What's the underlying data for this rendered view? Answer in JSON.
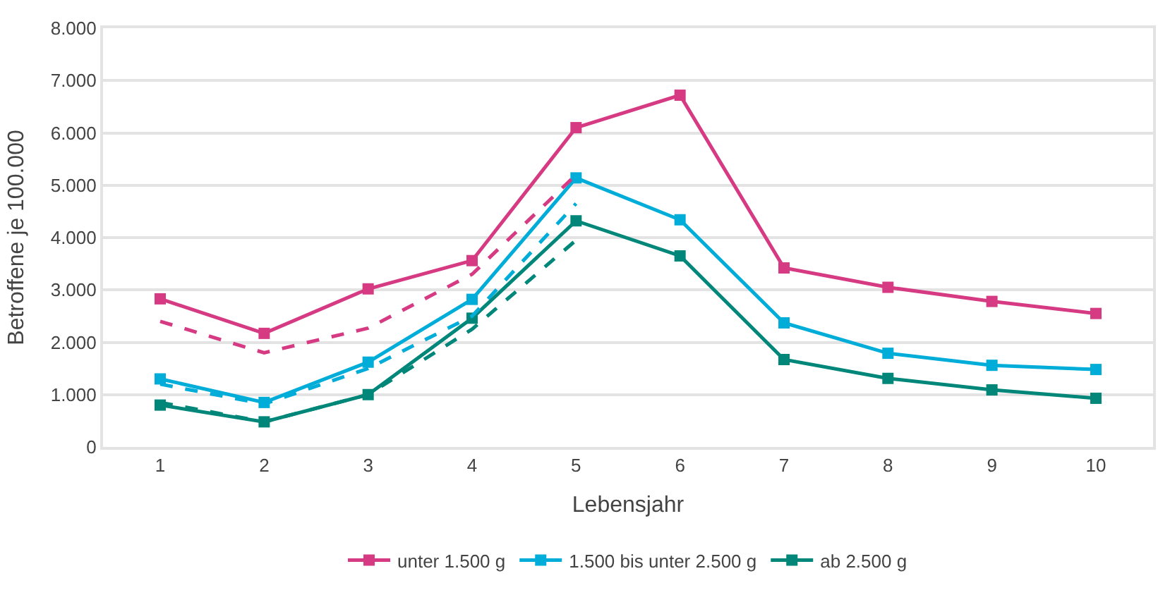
{
  "chart_data": {
    "type": "line",
    "xlabel": "Lebensjahr",
    "ylabel": "Betroffene je 100.000",
    "x": [
      1,
      2,
      3,
      4,
      5,
      6,
      7,
      8,
      9,
      10
    ],
    "xlim": [
      0.45,
      10.55
    ],
    "xticks": [
      1,
      2,
      3,
      4,
      5,
      6,
      7,
      8,
      9,
      10
    ],
    "ylim": [
      0,
      8000
    ],
    "yticks": [
      {
        "value": 0,
        "label": "0"
      },
      {
        "value": 1000,
        "label": "1.000"
      },
      {
        "value": 2000,
        "label": "2.000"
      },
      {
        "value": 3000,
        "label": "3.000"
      },
      {
        "value": 4000,
        "label": "4.000"
      },
      {
        "value": 5000,
        "label": "5.000"
      },
      {
        "value": 6000,
        "label": "6.000"
      },
      {
        "value": 7000,
        "label": "7.000"
      },
      {
        "value": 8000,
        "label": "8.000"
      }
    ],
    "grid": "y",
    "legend": "bottom",
    "marker": "square",
    "line_style": "solid",
    "series": [
      {
        "name": "unter 1.500 g",
        "color": "#d63a83",
        "values": [
          2830,
          2170,
          3020,
          3560,
          6100,
          6720,
          3420,
          3050,
          2780,
          2550
        ]
      },
      {
        "name": "1.500 bis unter 2.500 g",
        "color": "#00acd8",
        "values": [
          1300,
          850,
          1620,
          2820,
          5140,
          4340,
          2370,
          1790,
          1560,
          1480
        ]
      },
      {
        "name": "ab 2.500 g",
        "color": "#00877a",
        "values": [
          800,
          480,
          1000,
          2460,
          4320,
          3650,
          1670,
          1310,
          1090,
          930
        ]
      },
      {
        "color": "#d63a83",
        "x": [
          1,
          2,
          3,
          4,
          5
        ],
        "values": [
          2400,
          1800,
          2270,
          3300,
          5200
        ],
        "marker": "none",
        "line_style": "dashed"
      },
      {
        "color": "#00acd8",
        "x": [
          1,
          2,
          3,
          4,
          5
        ],
        "values": [
          1200,
          820,
          1500,
          2500,
          4650
        ],
        "marker": "none",
        "line_style": "dashed"
      },
      {
        "color": "#00877a",
        "x": [
          1,
          2,
          3,
          4,
          5
        ],
        "values": [
          850,
          480,
          1000,
          2250,
          3950
        ],
        "marker": "none",
        "line_style": "dashed"
      }
    ]
  }
}
